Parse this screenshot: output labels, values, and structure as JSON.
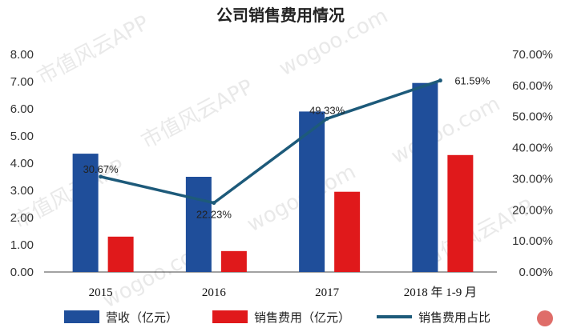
{
  "chart_data": {
    "type": "bar",
    "title": "公司销售费用情况",
    "categories": [
      "2015",
      "2016",
      "2017",
      "2018 年 1-9 月"
    ],
    "y_left": {
      "ticks": [
        "0.00",
        "1.00",
        "2.00",
        "3.00",
        "4.00",
        "5.00",
        "6.00",
        "7.00",
        "8.00"
      ],
      "ylim": [
        0,
        8
      ]
    },
    "y_right": {
      "ticks": [
        "0.00%",
        "10.00%",
        "20.00%",
        "30.00%",
        "40.00%",
        "50.00%",
        "60.00%",
        "70.00%"
      ],
      "ylim": [
        0,
        70
      ]
    },
    "series": [
      {
        "name": "营收（亿元）",
        "type": "bar",
        "axis": "left",
        "color": "#1f4e9a",
        "values": [
          4.35,
          3.5,
          5.9,
          6.95
        ]
      },
      {
        "name": "销售费用（亿元）",
        "type": "bar",
        "axis": "left",
        "color": "#e0191b",
        "values": [
          1.3,
          0.77,
          2.95,
          4.3
        ]
      },
      {
        "name": "销售费用占比",
        "type": "line",
        "axis": "right",
        "color": "#1d5a7a",
        "values": [
          30.67,
          22.23,
          49.33,
          61.59
        ],
        "labels": [
          "30.67%",
          "22.23%",
          "49.33%",
          "61.59%"
        ]
      }
    ],
    "grid": false,
    "legend_position": "bottom"
  },
  "watermarks": [
    "市值风云APP",
    "wogoo.com"
  ]
}
